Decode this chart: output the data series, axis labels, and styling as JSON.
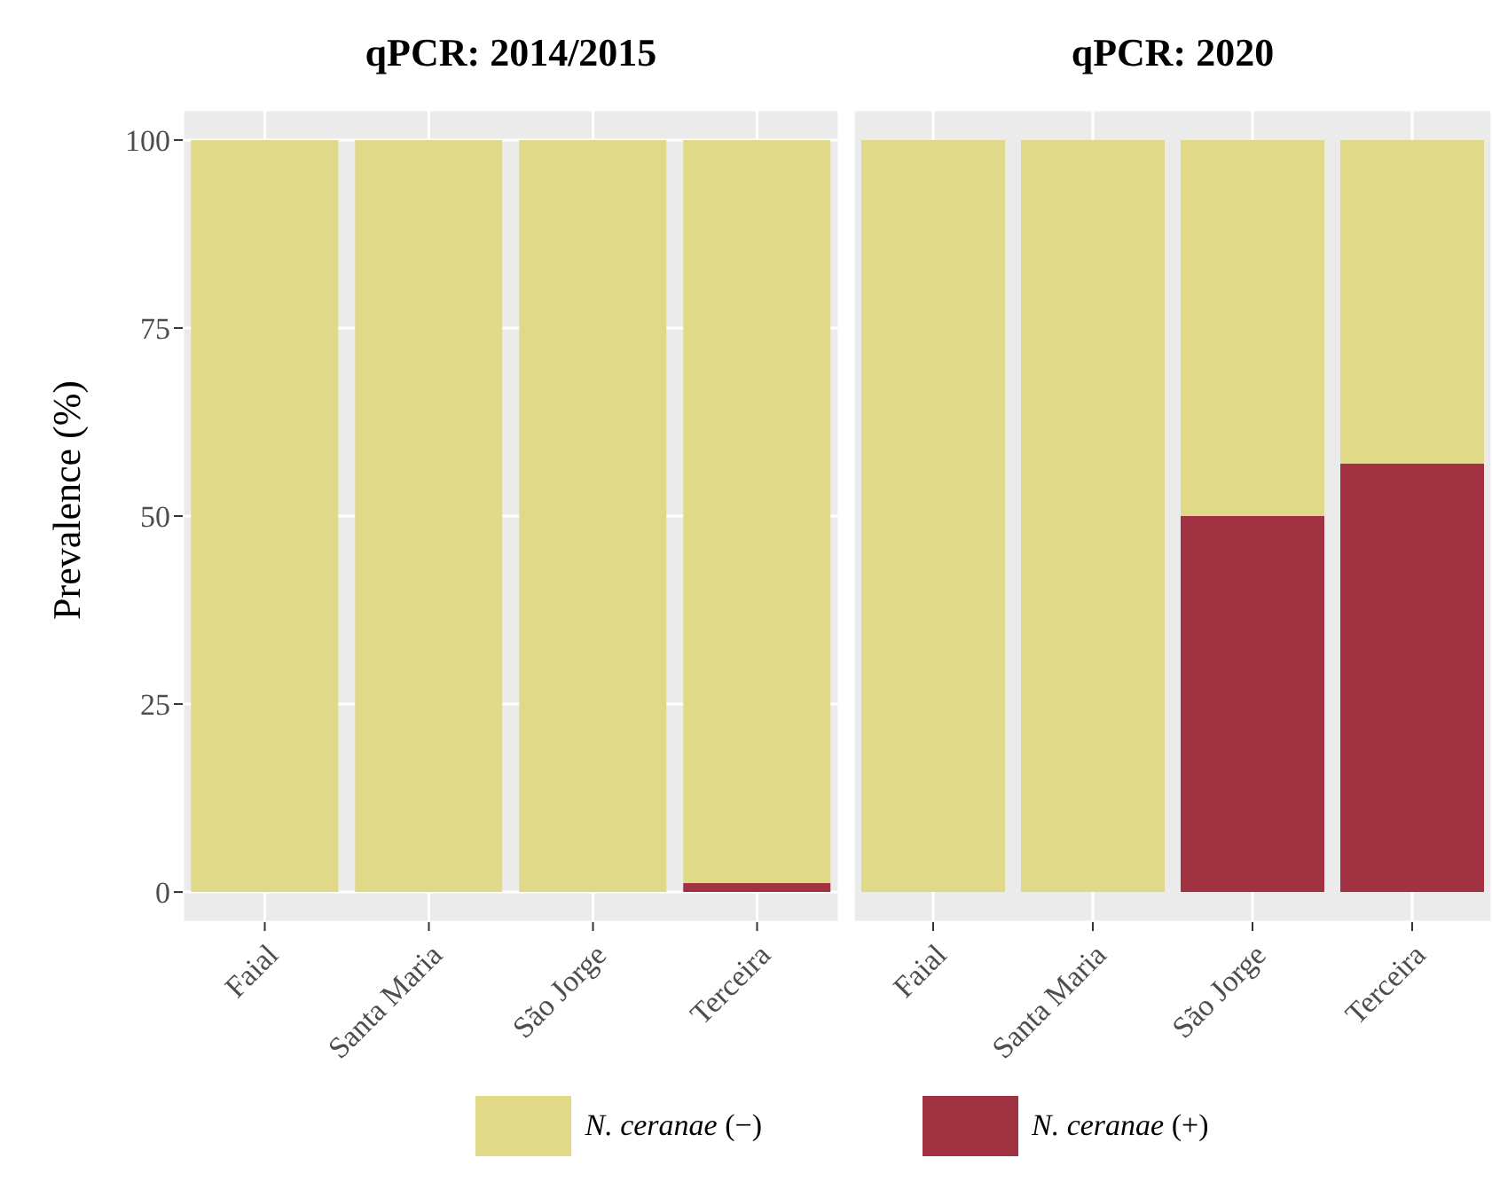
{
  "chart_data": [
    {
      "type": "bar",
      "title": "qPCR: 2014/2015",
      "ylabel": "Prevalence (%)",
      "categories": [
        "Faial",
        "Santa Maria",
        "São Jorge",
        "Terceira"
      ],
      "stacked": true,
      "ylim": [
        -4,
        104
      ],
      "yticks": [
        0,
        25,
        50,
        75,
        100
      ],
      "grid": true,
      "legend": "bottom",
      "series": [
        {
          "name": "N. ceranae (+)",
          "color": "#a13242",
          "values": [
            0,
            0,
            0,
            1.2
          ]
        },
        {
          "name": "N. ceranae (−)",
          "color": "#e0da88",
          "values": [
            100,
            100,
            100,
            98.8
          ]
        }
      ]
    },
    {
      "type": "bar",
      "title": "qPCR: 2020",
      "categories": [
        "Faial",
        "Santa Maria",
        "São Jorge",
        "Terceira"
      ],
      "stacked": true,
      "ylim": [
        -4,
        104
      ],
      "yticks": [
        0,
        25,
        50,
        75,
        100
      ],
      "grid": true,
      "tick_labels": "x",
      "series": [
        {
          "color": "#a13242",
          "values": [
            0,
            0,
            50,
            57
          ]
        },
        {
          "color": "#e0da88",
          "values": [
            100,
            100,
            50,
            43
          ]
        }
      ]
    }
  ]
}
